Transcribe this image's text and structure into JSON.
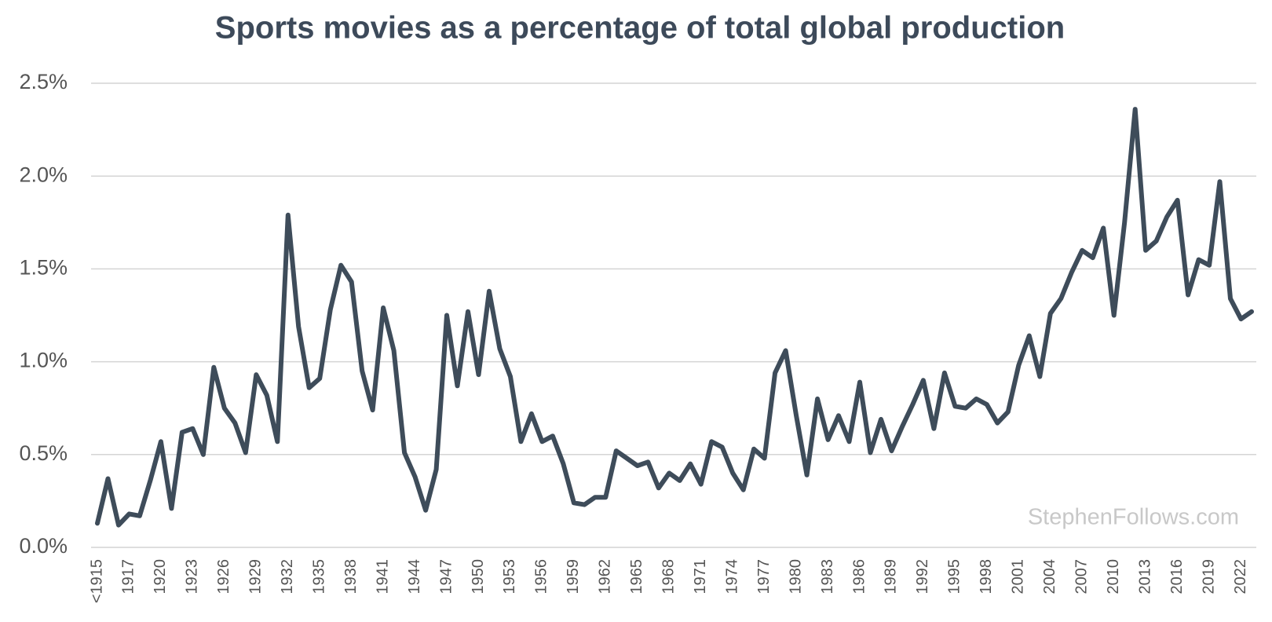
{
  "chart_data": {
    "type": "line",
    "title": "Sports movies as a percentage of total global production",
    "watermark": "StephenFollows.com",
    "categories": [
      "<1915",
      null,
      null,
      "1917",
      null,
      null,
      "1920",
      null,
      null,
      "1923",
      null,
      null,
      "1926",
      null,
      null,
      "1929",
      null,
      null,
      "1932",
      null,
      null,
      "1935",
      null,
      null,
      "1938",
      null,
      null,
      "1941",
      null,
      null,
      "1944",
      null,
      null,
      "1947",
      null,
      null,
      "1950",
      null,
      null,
      "1953",
      null,
      null,
      "1956",
      null,
      null,
      "1959",
      null,
      null,
      "1962",
      null,
      null,
      "1965",
      null,
      null,
      "1968",
      null,
      null,
      "1971",
      null,
      null,
      "1974",
      null,
      null,
      "1977",
      null,
      null,
      "1980",
      null,
      null,
      "1983",
      null,
      null,
      "1986",
      null,
      null,
      "1989",
      null,
      null,
      "1992",
      null,
      null,
      "1995",
      null,
      null,
      "1998",
      null,
      null,
      "2001",
      null,
      null,
      "2004",
      null,
      null,
      "2007",
      null,
      null,
      "2010",
      null,
      null,
      "2013",
      null,
      null,
      "2016",
      null,
      null,
      "2019",
      null,
      null,
      "2022",
      null
    ],
    "values": [
      0.13,
      0.37,
      0.12,
      0.18,
      0.17,
      0.36,
      0.57,
      0.21,
      0.62,
      0.64,
      0.5,
      0.97,
      0.75,
      0.67,
      0.51,
      0.93,
      0.82,
      0.57,
      1.79,
      1.19,
      0.86,
      0.91,
      1.28,
      1.52,
      1.43,
      0.95,
      0.74,
      1.29,
      1.06,
      0.51,
      0.38,
      0.2,
      0.42,
      1.25,
      0.87,
      1.27,
      0.93,
      1.38,
      1.07,
      0.92,
      0.57,
      0.72,
      0.57,
      0.6,
      0.45,
      0.24,
      0.23,
      0.27,
      0.27,
      0.52,
      0.48,
      0.44,
      0.46,
      0.32,
      0.4,
      0.36,
      0.45,
      0.34,
      0.57,
      0.54,
      0.4,
      0.31,
      0.53,
      0.48,
      0.94,
      1.06,
      0.71,
      0.39,
      0.8,
      0.58,
      0.71,
      0.57,
      0.89,
      0.51,
      0.69,
      0.52,
      0.65,
      0.77,
      0.9,
      0.64,
      0.94,
      0.76,
      0.75,
      0.8,
      0.77,
      0.67,
      0.73,
      0.98,
      1.14,
      0.92,
      1.26,
      1.34,
      1.48,
      1.6,
      1.56,
      1.72,
      1.25,
      1.75,
      2.36,
      1.6,
      1.65,
      1.78,
      1.87,
      1.36,
      1.55,
      1.52,
      1.97,
      1.34,
      1.23,
      1.27
    ],
    "color": "#3e4c5a",
    "ylim": [
      0,
      2.5
    ],
    "yticks": [
      {
        "value": 0,
        "label": "0.0%"
      },
      {
        "value": 0.5,
        "label": "0.5%"
      },
      {
        "value": 1,
        "label": "1.0%"
      },
      {
        "value": 1.5,
        "label": "1.5%"
      },
      {
        "value": 2,
        "label": "2.0%"
      },
      {
        "value": 2.5,
        "label": "2.5%"
      }
    ],
    "grid": true
  }
}
